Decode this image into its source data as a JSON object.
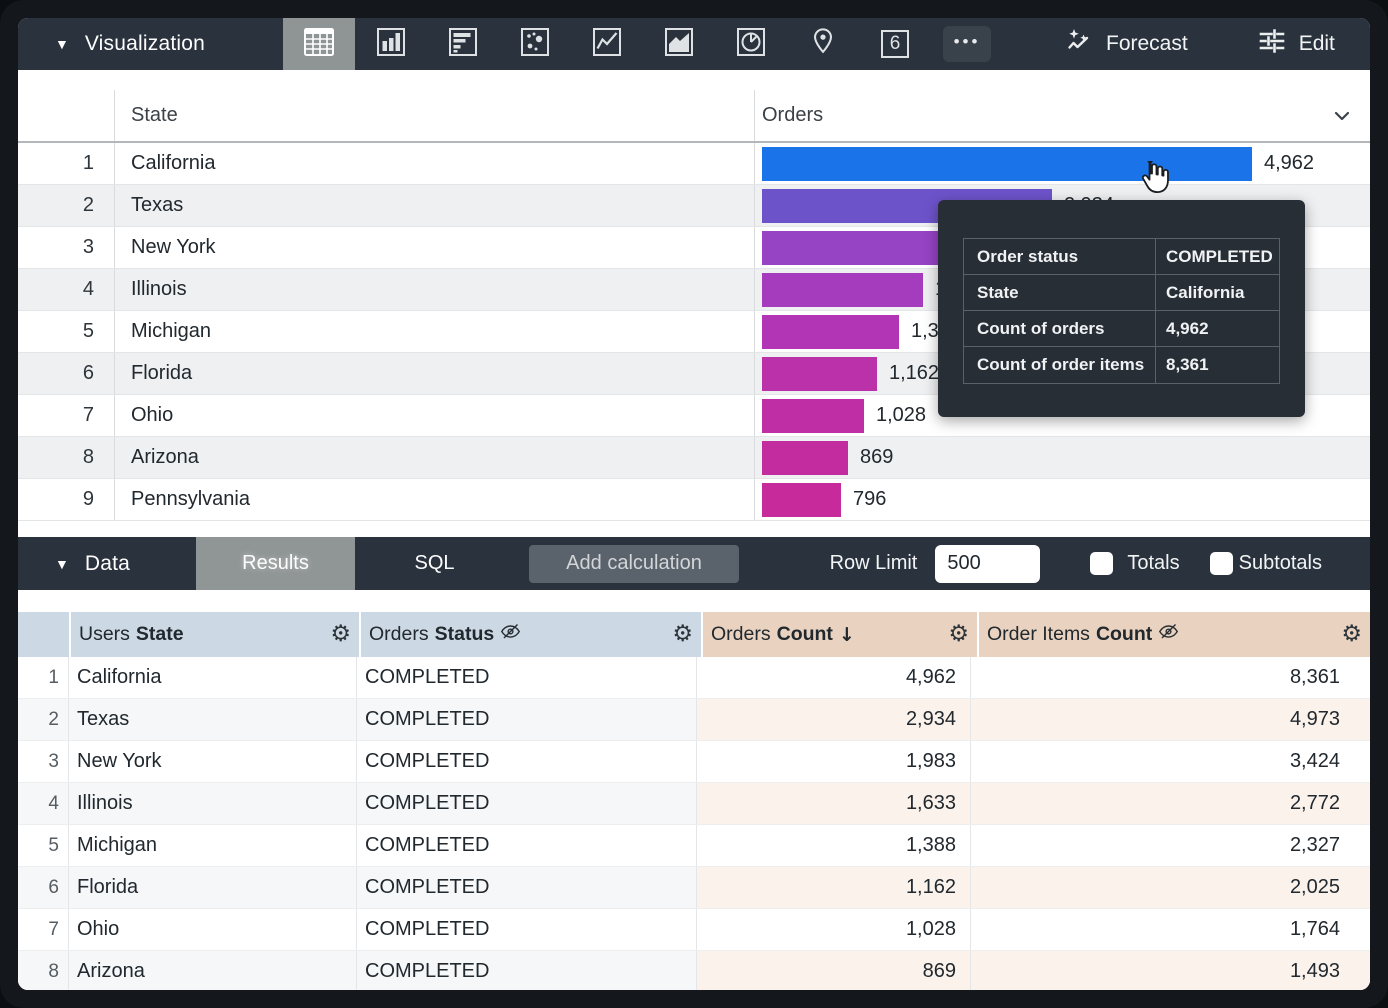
{
  "viz_toolbar": {
    "section_label": "Visualization",
    "single_value_label": "6",
    "forecast_label": "Forecast",
    "edit_label": "Edit",
    "icons": [
      "table",
      "column-chart",
      "horizontal-bar-chart",
      "scatter-plot",
      "line-chart",
      "area-chart",
      "pie-chart",
      "map",
      "single-value",
      "more"
    ]
  },
  "viz_table": {
    "state_header": "State",
    "orders_header": "Orders",
    "max_value": 4962,
    "rows": [
      {
        "n": "1",
        "state": "California",
        "value": 4962,
        "label": "4,962",
        "color": "#1a73e8"
      },
      {
        "n": "2",
        "state": "Texas",
        "value": 2934,
        "label": "2,934",
        "color": "#6d53c9"
      },
      {
        "n": "3",
        "state": "New York",
        "value": 1983,
        "label": "1,983",
        "color": "#9643c4"
      },
      {
        "n": "4",
        "state": "Illinois",
        "value": 1633,
        "label": "1,633",
        "color": "#a53bbd"
      },
      {
        "n": "5",
        "state": "Michigan",
        "value": 1388,
        "label": "1,388",
        "color": "#b135b4"
      },
      {
        "n": "6",
        "state": "Florida",
        "value": 1162,
        "label": "1,162",
        "color": "#ba31a9"
      },
      {
        "n": "7",
        "state": "Ohio",
        "value": 1028,
        "label": "1,028",
        "color": "#bf2ea4"
      },
      {
        "n": "8",
        "state": "Arizona",
        "value": 869,
        "label": "869",
        "color": "#c32c9f"
      },
      {
        "n": "9",
        "state": "Pennsylvania",
        "value": 796,
        "label": "796",
        "color": "#c62a9b"
      }
    ]
  },
  "tooltip": {
    "rows": [
      {
        "label": "Order status",
        "value": "COMPLETED"
      },
      {
        "label": "State",
        "value": "California"
      },
      {
        "label": "Count of orders",
        "value": "4,962"
      },
      {
        "label": "Count of order items",
        "value": "8,361"
      }
    ]
  },
  "data_toolbar": {
    "section_label": "Data",
    "results_tab": "Results",
    "sql_tab": "SQL",
    "add_calculation_label": "Add calculation",
    "row_limit_label": "Row Limit",
    "row_limit_value": "500",
    "totals_label": "Totals",
    "subtotals_label": "Subtotals"
  },
  "data_table": {
    "sort_arrow": "↓",
    "columns": [
      {
        "prefix": "Users",
        "bold": "State",
        "group": "dimension"
      },
      {
        "prefix": "Orders",
        "bold": "Status",
        "group": "dimension"
      },
      {
        "prefix": "Orders",
        "bold": "Count",
        "group": "measure"
      },
      {
        "prefix": "Order Items",
        "bold": "Count",
        "group": "measure"
      }
    ],
    "rows": [
      {
        "n": "1",
        "state": "California",
        "status": "COMPLETED",
        "orders_count": "4,962",
        "order_items_count": "8,361"
      },
      {
        "n": "2",
        "state": "Texas",
        "status": "COMPLETED",
        "orders_count": "2,934",
        "order_items_count": "4,973"
      },
      {
        "n": "3",
        "state": "New York",
        "status": "COMPLETED",
        "orders_count": "1,983",
        "order_items_count": "3,424"
      },
      {
        "n": "4",
        "state": "Illinois",
        "status": "COMPLETED",
        "orders_count": "1,633",
        "order_items_count": "2,772"
      },
      {
        "n": "5",
        "state": "Michigan",
        "status": "COMPLETED",
        "orders_count": "1,388",
        "order_items_count": "2,327"
      },
      {
        "n": "6",
        "state": "Florida",
        "status": "COMPLETED",
        "orders_count": "1,162",
        "order_items_count": "2,025"
      },
      {
        "n": "7",
        "state": "Ohio",
        "status": "COMPLETED",
        "orders_count": "1,028",
        "order_items_count": "1,764"
      },
      {
        "n": "8",
        "state": "Arizona",
        "status": "COMPLETED",
        "orders_count": "869",
        "order_items_count": "1,493"
      }
    ]
  },
  "chart_data": {
    "type": "bar",
    "orientation": "horizontal",
    "title": "Orders",
    "categories": [
      "California",
      "Texas",
      "New York",
      "Illinois",
      "Michigan",
      "Florida",
      "Ohio",
      "Arizona",
      "Pennsylvania"
    ],
    "values": [
      4962,
      2934,
      1983,
      1633,
      1388,
      1162,
      1028,
      869,
      796
    ],
    "value_labels": [
      "4,962",
      "2,934",
      "1,983",
      "1,633",
      "1,388",
      "1,162",
      "1,028",
      "869",
      "796"
    ],
    "xlim": [
      0,
      4962
    ],
    "colors": [
      "#1a73e8",
      "#6d53c9",
      "#9643c4",
      "#a53bbd",
      "#b135b4",
      "#ba31a9",
      "#bf2ea4",
      "#c32c9f",
      "#c62a9b"
    ]
  }
}
